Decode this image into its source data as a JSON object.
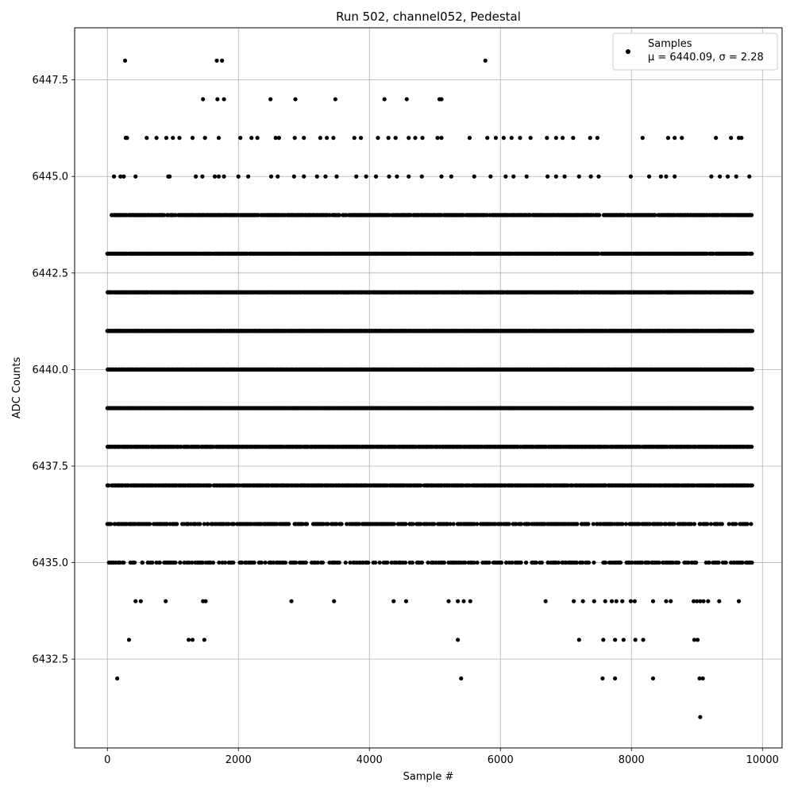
{
  "chart_data": {
    "type": "scatter",
    "title": "Run 502, channel052, Pedestal",
    "xlabel": "Sample #",
    "ylabel": "ADC Counts",
    "xlim": [
      -500,
      10300
    ],
    "ylim": [
      6430.2,
      6448.85
    ],
    "x_ticks": [
      0,
      2000,
      4000,
      6000,
      8000,
      10000
    ],
    "x_tick_labels": [
      "0",
      "2000",
      "4000",
      "6000",
      "8000",
      "10000"
    ],
    "y_ticks": [
      6432.5,
      6435.0,
      6437.5,
      6440.0,
      6442.5,
      6445.0,
      6447.5
    ],
    "y_tick_labels": [
      "6432.5",
      "6435.0",
      "6437.5",
      "6440.0",
      "6442.5",
      "6445.0",
      "6447.5"
    ],
    "grid": true,
    "marker_color": "#000000",
    "legend": {
      "placement": "top-right",
      "series_name": "Samples",
      "stats_label": "μ = 6440.09, σ = 2.28"
    },
    "series": [
      {
        "name": "Samples",
        "points": [
          [
            270,
            6448
          ],
          [
            1670,
            6448
          ],
          [
            1750,
            6448
          ],
          [
            5770,
            6448
          ],
          [
            1460,
            6447
          ],
          [
            1680,
            6447
          ],
          [
            1780,
            6447
          ],
          [
            2490,
            6447
          ],
          [
            2870,
            6447
          ],
          [
            3480,
            6447
          ],
          [
            4230,
            6447
          ],
          [
            4570,
            6447
          ],
          [
            5070,
            6447
          ],
          [
            5100,
            6447
          ],
          [
            150,
            6432
          ],
          [
            5400,
            6432
          ],
          [
            7560,
            6432
          ],
          [
            7750,
            6432
          ],
          [
            8330,
            6432
          ],
          [
            9040,
            6432
          ],
          [
            9090,
            6432
          ],
          [
            330,
            6433
          ],
          [
            1240,
            6433
          ],
          [
            1300,
            6433
          ],
          [
            1480,
            6433
          ],
          [
            5350,
            6433
          ],
          [
            7200,
            6433
          ],
          [
            7570,
            6433
          ],
          [
            7750,
            6433
          ],
          [
            7880,
            6433
          ],
          [
            8060,
            6433
          ],
          [
            8180,
            6433
          ],
          [
            8960,
            6433
          ],
          [
            9010,
            6433
          ],
          [
            9050,
            6431
          ],
          [
            430,
            6434
          ],
          [
            510,
            6434
          ],
          [
            890,
            6434
          ],
          [
            1460,
            6434
          ],
          [
            1500,
            6434
          ],
          [
            2810,
            6434
          ],
          [
            3460,
            6434
          ],
          [
            4370,
            6434
          ],
          [
            4560,
            6434
          ],
          [
            5210,
            6434
          ],
          [
            5350,
            6434
          ],
          [
            5440,
            6434
          ],
          [
            5540,
            6434
          ],
          [
            6690,
            6434
          ],
          [
            7120,
            6434
          ],
          [
            7260,
            6434
          ],
          [
            7430,
            6434
          ],
          [
            7600,
            6434
          ],
          [
            7700,
            6434
          ],
          [
            7770,
            6434
          ],
          [
            7860,
            6434
          ],
          [
            7990,
            6434
          ],
          [
            8050,
            6434
          ],
          [
            8330,
            6434
          ],
          [
            8530,
            6434
          ],
          [
            8600,
            6434
          ],
          [
            8950,
            6434
          ],
          [
            9000,
            6434
          ],
          [
            9050,
            6434
          ],
          [
            9100,
            6434
          ],
          [
            9170,
            6434
          ],
          [
            9340,
            6434
          ],
          [
            9640,
            6434
          ],
          [
            280,
            6446
          ],
          [
            300,
            6446
          ],
          [
            600,
            6446
          ],
          [
            750,
            6446
          ],
          [
            900,
            6446
          ],
          [
            1000,
            6446
          ],
          [
            1100,
            6446
          ],
          [
            1300,
            6446
          ],
          [
            1490,
            6446
          ],
          [
            1700,
            6446
          ],
          [
            2030,
            6446
          ],
          [
            2200,
            6446
          ],
          [
            2290,
            6446
          ],
          [
            2570,
            6446
          ],
          [
            2620,
            6446
          ],
          [
            2860,
            6446
          ],
          [
            3000,
            6446
          ],
          [
            3250,
            6446
          ],
          [
            3350,
            6446
          ],
          [
            3450,
            6446
          ],
          [
            3770,
            6446
          ],
          [
            3870,
            6446
          ],
          [
            4130,
            6446
          ],
          [
            4290,
            6446
          ],
          [
            4400,
            6446
          ],
          [
            4600,
            6446
          ],
          [
            4700,
            6446
          ],
          [
            4810,
            6446
          ],
          [
            5040,
            6446
          ],
          [
            5100,
            6446
          ],
          [
            5530,
            6446
          ],
          [
            5800,
            6446
          ],
          [
            5930,
            6446
          ],
          [
            6050,
            6446
          ],
          [
            6170,
            6446
          ],
          [
            6300,
            6446
          ],
          [
            6460,
            6446
          ],
          [
            6710,
            6446
          ],
          [
            6850,
            6446
          ],
          [
            6950,
            6446
          ],
          [
            7110,
            6446
          ],
          [
            7370,
            6446
          ],
          [
            7480,
            6446
          ],
          [
            8170,
            6446
          ],
          [
            8560,
            6446
          ],
          [
            8660,
            6446
          ],
          [
            8770,
            6446
          ],
          [
            9290,
            6446
          ],
          [
            9520,
            6446
          ],
          [
            9640,
            6446
          ],
          [
            9680,
            6446
          ],
          [
            100,
            6445
          ],
          [
            200,
            6445
          ],
          [
            250,
            6445
          ],
          [
            430,
            6445
          ],
          [
            930,
            6445
          ],
          [
            950,
            6445
          ],
          [
            1350,
            6445
          ],
          [
            1450,
            6445
          ],
          [
            1640,
            6445
          ],
          [
            1700,
            6445
          ],
          [
            1780,
            6445
          ],
          [
            2000,
            6445
          ],
          [
            2150,
            6445
          ],
          [
            2500,
            6445
          ],
          [
            2600,
            6445
          ],
          [
            2850,
            6445
          ],
          [
            3000,
            6445
          ],
          [
            3200,
            6445
          ],
          [
            3330,
            6445
          ],
          [
            3500,
            6445
          ],
          [
            3800,
            6445
          ],
          [
            3950,
            6445
          ],
          [
            4100,
            6445
          ],
          [
            4300,
            6445
          ],
          [
            4420,
            6445
          ],
          [
            4600,
            6445
          ],
          [
            4800,
            6445
          ],
          [
            5100,
            6445
          ],
          [
            5250,
            6445
          ],
          [
            5600,
            6445
          ],
          [
            5850,
            6445
          ],
          [
            6080,
            6445
          ],
          [
            6200,
            6445
          ],
          [
            6400,
            6445
          ],
          [
            6720,
            6445
          ],
          [
            6850,
            6445
          ],
          [
            6980,
            6445
          ],
          [
            7200,
            6445
          ],
          [
            7380,
            6445
          ],
          [
            7500,
            6445
          ],
          [
            7990,
            6445
          ],
          [
            8270,
            6445
          ],
          [
            8450,
            6445
          ],
          [
            8530,
            6445
          ],
          [
            8660,
            6445
          ],
          [
            9220,
            6445
          ],
          [
            9350,
            6445
          ],
          [
            9470,
            6445
          ],
          [
            9600,
            6445
          ],
          [
            9800,
            6445
          ]
        ],
        "dense_bands": [
          {
            "y": 6444,
            "fill": 0.78
          },
          {
            "y": 6443,
            "fill": 0.9
          },
          {
            "y": 6442,
            "fill": 0.97
          },
          {
            "y": 6441,
            "fill": 1.0
          },
          {
            "y": 6440,
            "fill": 1.0
          },
          {
            "y": 6439,
            "fill": 1.0
          },
          {
            "y": 6438,
            "fill": 0.92
          },
          {
            "y": 6437,
            "fill": 0.85
          },
          {
            "y": 6436,
            "fill": 0.55
          },
          {
            "y": 6435,
            "fill": 0.38
          }
        ],
        "x_range": [
          0,
          9850
        ]
      }
    ]
  }
}
